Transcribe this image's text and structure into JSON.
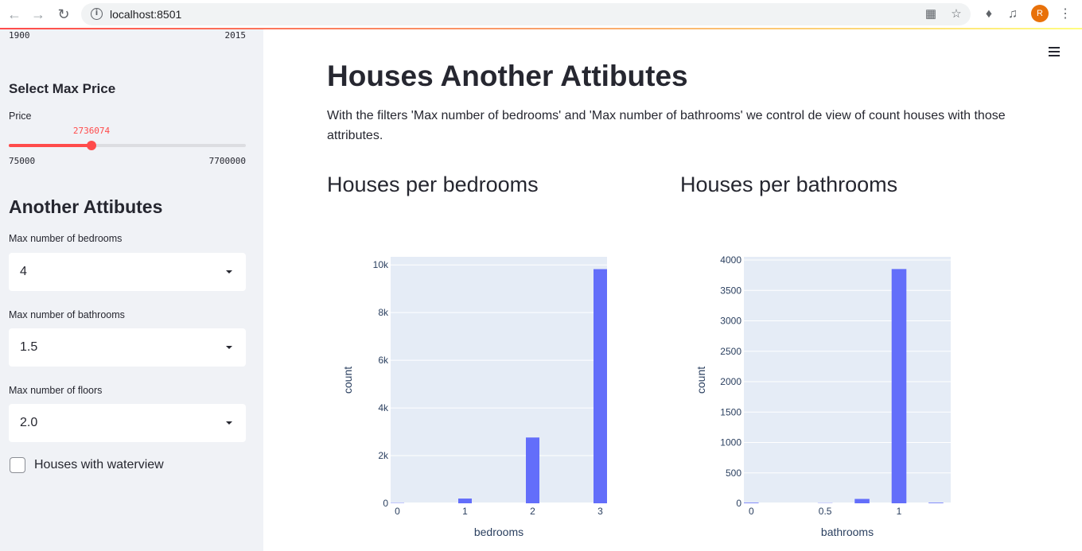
{
  "browser": {
    "url": "localhost:8501",
    "profile_initial": "R",
    "icons": [
      "back-arrow-icon",
      "forward-arrow-icon",
      "reload-icon",
      "info-icon",
      "translate-icon",
      "star-icon",
      "extensions-icon",
      "media-control-icon",
      "menu-dots-icon"
    ]
  },
  "sidebar": {
    "year_slider": {
      "min_label": "1900",
      "max_label": "2015"
    },
    "price_section_title": "Select Max Price",
    "price_slider": {
      "label": "Price",
      "value": "2736074",
      "min_label": "75000",
      "max_label": "7700000",
      "min": 75000,
      "max": 7700000,
      "current": 2736074
    },
    "attributes_title": "Another Attibutes",
    "bedrooms": {
      "label": "Max number of bedrooms",
      "value": "4"
    },
    "bathrooms": {
      "label": "Max number of bathrooms",
      "value": "1.5"
    },
    "floors": {
      "label": "Max number of floors",
      "value": "2.0"
    },
    "waterview": {
      "label": "Houses with waterview",
      "checked": false
    },
    "accent_color": "#ff4b4b"
  },
  "main": {
    "title": "Houses Another Attibutes",
    "description": "With the filters 'Max number of bedrooms' and 'Max number of bathrooms' we control de view of count houses with those attributes.",
    "bedrooms_chart_title": "Houses per bedrooms",
    "bathrooms_chart_title": "Houses per bathrooms"
  },
  "chart_data": [
    {
      "type": "bar",
      "title": "Houses per bedrooms",
      "xlabel": "bedrooms",
      "ylabel": "count",
      "x": [
        0,
        1,
        2,
        3
      ],
      "values": [
        13,
        199,
        2760,
        9824
      ],
      "xlim": [
        -0.1,
        3.1
      ],
      "ylim": [
        0,
        10341
      ],
      "yticks": [
        0,
        2000,
        4000,
        6000,
        8000,
        10000
      ],
      "ytick_labels": [
        "0",
        "2k",
        "4k",
        "6k",
        "8k",
        "10k"
      ],
      "xticks": [
        0,
        1,
        2,
        3
      ],
      "xtick_labels": [
        "0",
        "1",
        "2",
        "3"
      ],
      "bar_width": 0.2,
      "bar_color": "#636efa",
      "grid": true
    },
    {
      "type": "bar",
      "title": "Houses per bathrooms",
      "xlabel": "bathrooms",
      "ylabel": "count",
      "x": [
        0,
        0.5,
        0.75,
        1,
        1.25
      ],
      "values": [
        10,
        4,
        72,
        3852,
        10
      ],
      "xlim": [
        -0.05,
        1.35
      ],
      "ylim": [
        0,
        4053
      ],
      "yticks": [
        0,
        500,
        1000,
        1500,
        2000,
        2500,
        3000,
        3500,
        4000
      ],
      "ytick_labels": [
        "0",
        "500",
        "1000",
        "1500",
        "2000",
        "2500",
        "3000",
        "3500",
        "4000"
      ],
      "xticks": [
        0,
        0.5,
        1
      ],
      "xtick_labels": [
        "0",
        "0.5",
        "1"
      ],
      "bar_width": 0.1,
      "bar_color": "#636efa",
      "grid": true
    }
  ]
}
